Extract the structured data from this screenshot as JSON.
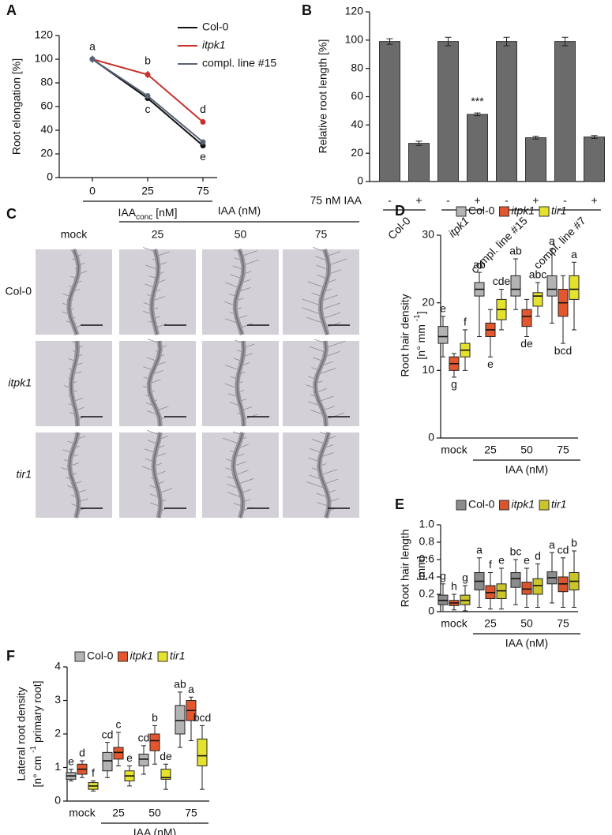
{
  "chart_data": [
    {
      "type": "line",
      "panel_label": "A",
      "y_label": "Root elongation [%]",
      "x_label": {
        "text": "IAA",
        "sub": "conc",
        "unit": "[nM]"
      },
      "categories": [
        "0",
        "25",
        "75"
      ],
      "ylim": [
        0,
        120
      ],
      "yticks": [
        0,
        20,
        40,
        60,
        80,
        100,
        120
      ],
      "series": [
        {
          "name": "Col-0",
          "color": "#111111",
          "values": [
            100,
            67,
            27
          ],
          "errors": [
            2,
            2,
            2
          ],
          "point_labels": [
            "a",
            "c",
            "e"
          ]
        },
        {
          "name": "itpk1",
          "italic": true,
          "color": "#c8322c",
          "values": [
            100,
            87,
            47
          ],
          "errors": [
            2,
            3,
            2
          ],
          "point_labels": [
            null,
            "b",
            "d"
          ]
        },
        {
          "name": "compl. line #15",
          "color": "#5a6478",
          "values": [
            100,
            69,
            30
          ],
          "errors": [
            3,
            2,
            2
          ],
          "point_labels": [
            null,
            null,
            null
          ]
        }
      ]
    },
    {
      "type": "bar",
      "panel_label": "B",
      "y_label": "Relative root length [%]",
      "row_label": "75 nM IAA",
      "categories": [
        "-",
        "+",
        "-",
        "+",
        "-",
        "+",
        "-",
        "+"
      ],
      "groups": [
        {
          "label": "Col-0"
        },
        {
          "label": "itpk1",
          "italic": true
        },
        {
          "label": "compl. line #15"
        },
        {
          "label": "compl. line #7"
        }
      ],
      "values": [
        99,
        27,
        99,
        47.5,
        99,
        31,
        99,
        31.5
      ],
      "errors": [
        2,
        1.5,
        3,
        1,
        3,
        1,
        3,
        1
      ],
      "bar_labels": [
        null,
        null,
        null,
        "***",
        null,
        null,
        null,
        null
      ],
      "color": "#6b6b6b",
      "ylim": [
        0,
        120
      ],
      "yticks": [
        0,
        20,
        40,
        60,
        80,
        100,
        120
      ]
    },
    {
      "type": "box",
      "panel_label": "D",
      "y_label": "Root hair density",
      "y_unit": [
        "[n° mm ",
        "-1",
        "]"
      ],
      "x_label": "IAA (nM)",
      "categories": [
        "mock",
        "25",
        "50",
        "75"
      ],
      "ylim": [
        0,
        30
      ],
      "yticks": [
        0,
        10,
        20,
        30
      ],
      "series": [
        {
          "name": "Col-0",
          "color": "#b3b3b3",
          "min": [
            12,
            15,
            19,
            17
          ],
          "q1": [
            14,
            21,
            21,
            21
          ],
          "median": [
            15,
            22,
            22,
            22
          ],
          "q3": [
            16.5,
            23,
            24,
            24
          ],
          "max": [
            18,
            24.5,
            26.5,
            28
          ],
          "letters": [
            "e",
            "ab",
            "ab",
            "a"
          ]
        },
        {
          "name": "itpk1",
          "italic": true,
          "color": "#e4572e",
          "min": [
            9,
            12,
            15,
            14
          ],
          "q1": [
            10,
            15,
            16.5,
            18
          ],
          "median": [
            11,
            16,
            18,
            20
          ],
          "q3": [
            12,
            17,
            19,
            22
          ],
          "max": [
            12.5,
            19,
            20.5,
            24
          ],
          "letters": [
            "g",
            "e",
            "de",
            "bcd"
          ]
        },
        {
          "name": "tir1",
          "italic": true,
          "color": "#e4e22c",
          "min": [
            10,
            16,
            18,
            16
          ],
          "q1": [
            12,
            17.5,
            19.5,
            20.5
          ],
          "median": [
            13,
            19,
            21,
            22
          ],
          "q3": [
            14,
            20.5,
            21.5,
            24
          ],
          "max": [
            16,
            22,
            23,
            26
          ],
          "letters": [
            "f",
            "cde",
            "abc",
            "a"
          ]
        }
      ]
    },
    {
      "type": "box",
      "panel_label": "E",
      "y_label": "Root hair length",
      "y_unit": [
        "[mm]"
      ],
      "x_label": "IAA (nM)",
      "categories": [
        "mock",
        "25",
        "50",
        "75"
      ],
      "ylim": [
        0,
        1
      ],
      "yticks": [
        0,
        0.2,
        0.4,
        0.6,
        0.8,
        {
          "value": 1,
          "label": "1.0"
        }
      ],
      "series": [
        {
          "name": "Col-0",
          "color": "#8c8c8c",
          "min": [
            0,
            0.05,
            0.08,
            0.1
          ],
          "q1": [
            0.08,
            0.25,
            0.28,
            0.32
          ],
          "median": [
            0.13,
            0.35,
            0.38,
            0.39
          ],
          "q3": [
            0.19,
            0.45,
            0.45,
            0.46
          ],
          "max": [
            0.32,
            0.62,
            0.6,
            0.68
          ],
          "letters": [
            "g",
            "a",
            "bc",
            "a"
          ]
        },
        {
          "name": "itpk1",
          "italic": true,
          "color": "#d9552e",
          "min": [
            0.02,
            0.03,
            0.05,
            0.05
          ],
          "q1": [
            0.07,
            0.15,
            0.2,
            0.23
          ],
          "median": [
            0.1,
            0.22,
            0.26,
            0.32
          ],
          "q3": [
            0.13,
            0.3,
            0.34,
            0.4
          ],
          "max": [
            0.2,
            0.45,
            0.5,
            0.62
          ],
          "letters": [
            "h",
            "f",
            "e",
            "cd"
          ]
        },
        {
          "name": "tir1",
          "italic": true,
          "color": "#c9c52a",
          "min": [
            0.01,
            0.03,
            0.05,
            0.05
          ],
          "q1": [
            0.08,
            0.15,
            0.2,
            0.25
          ],
          "median": [
            0.13,
            0.24,
            0.3,
            0.35
          ],
          "q3": [
            0.19,
            0.32,
            0.38,
            0.45
          ],
          "max": [
            0.3,
            0.5,
            0.55,
            0.7
          ],
          "letters": [
            "g",
            "e",
            "d",
            "b"
          ]
        }
      ]
    },
    {
      "type": "box",
      "panel_label": "F",
      "y_label": "Lateral root density",
      "y_unit": [
        "[n° cm ",
        "-1",
        " primary root]"
      ],
      "x_label": "IAA (nM)",
      "categories": [
        "mock",
        "25",
        "50",
        "75"
      ],
      "ylim": [
        0,
        4
      ],
      "yticks": [
        0,
        1,
        2,
        3,
        4
      ],
      "series": [
        {
          "name": "Col-0",
          "color": "#b3b3b3",
          "min": [
            0.6,
            0.7,
            0.8,
            1.6
          ],
          "q1": [
            0.65,
            0.9,
            1.05,
            2.0
          ],
          "median": [
            0.75,
            1.2,
            1.25,
            2.4
          ],
          "q3": [
            0.85,
            1.45,
            1.4,
            2.85
          ],
          "max": [
            0.95,
            1.75,
            1.65,
            3.25
          ],
          "letters": [
            "e",
            "cd",
            "cd",
            "ab"
          ]
        },
        {
          "name": "itpk1",
          "italic": true,
          "color": "#e4572e",
          "min": [
            0.7,
            1.05,
            1.1,
            1.8
          ],
          "q1": [
            0.8,
            1.25,
            1.5,
            2.4
          ],
          "median": [
            0.95,
            1.45,
            1.8,
            2.7
          ],
          "q3": [
            1.1,
            1.6,
            2.0,
            3.0
          ],
          "max": [
            1.2,
            2.05,
            2.25,
            3.1
          ],
          "letters": [
            "d",
            "c",
            "b",
            "a"
          ]
        },
        {
          "name": "tir1",
          "italic": true,
          "color": "#e4e22c",
          "min": [
            0.3,
            0.45,
            0.35,
            0.35
          ],
          "q1": [
            0.35,
            0.6,
            0.65,
            1.05
          ],
          "median": [
            0.45,
            0.75,
            0.7,
            1.35
          ],
          "q3": [
            0.55,
            0.9,
            0.95,
            1.85
          ],
          "max": [
            0.6,
            1.05,
            1.1,
            2.25
          ],
          "letters": [
            "f",
            "e",
            "de",
            "bcd"
          ]
        }
      ]
    }
  ],
  "image_grid": {
    "panel_label": "C",
    "header": "IAA (nM)",
    "columns": [
      "mock",
      "25",
      "50",
      "75"
    ],
    "rows": [
      {
        "label": "Col-0"
      },
      {
        "label": "itpk1",
        "italic": true
      },
      {
        "label": "tir1",
        "italic": true
      }
    ]
  }
}
